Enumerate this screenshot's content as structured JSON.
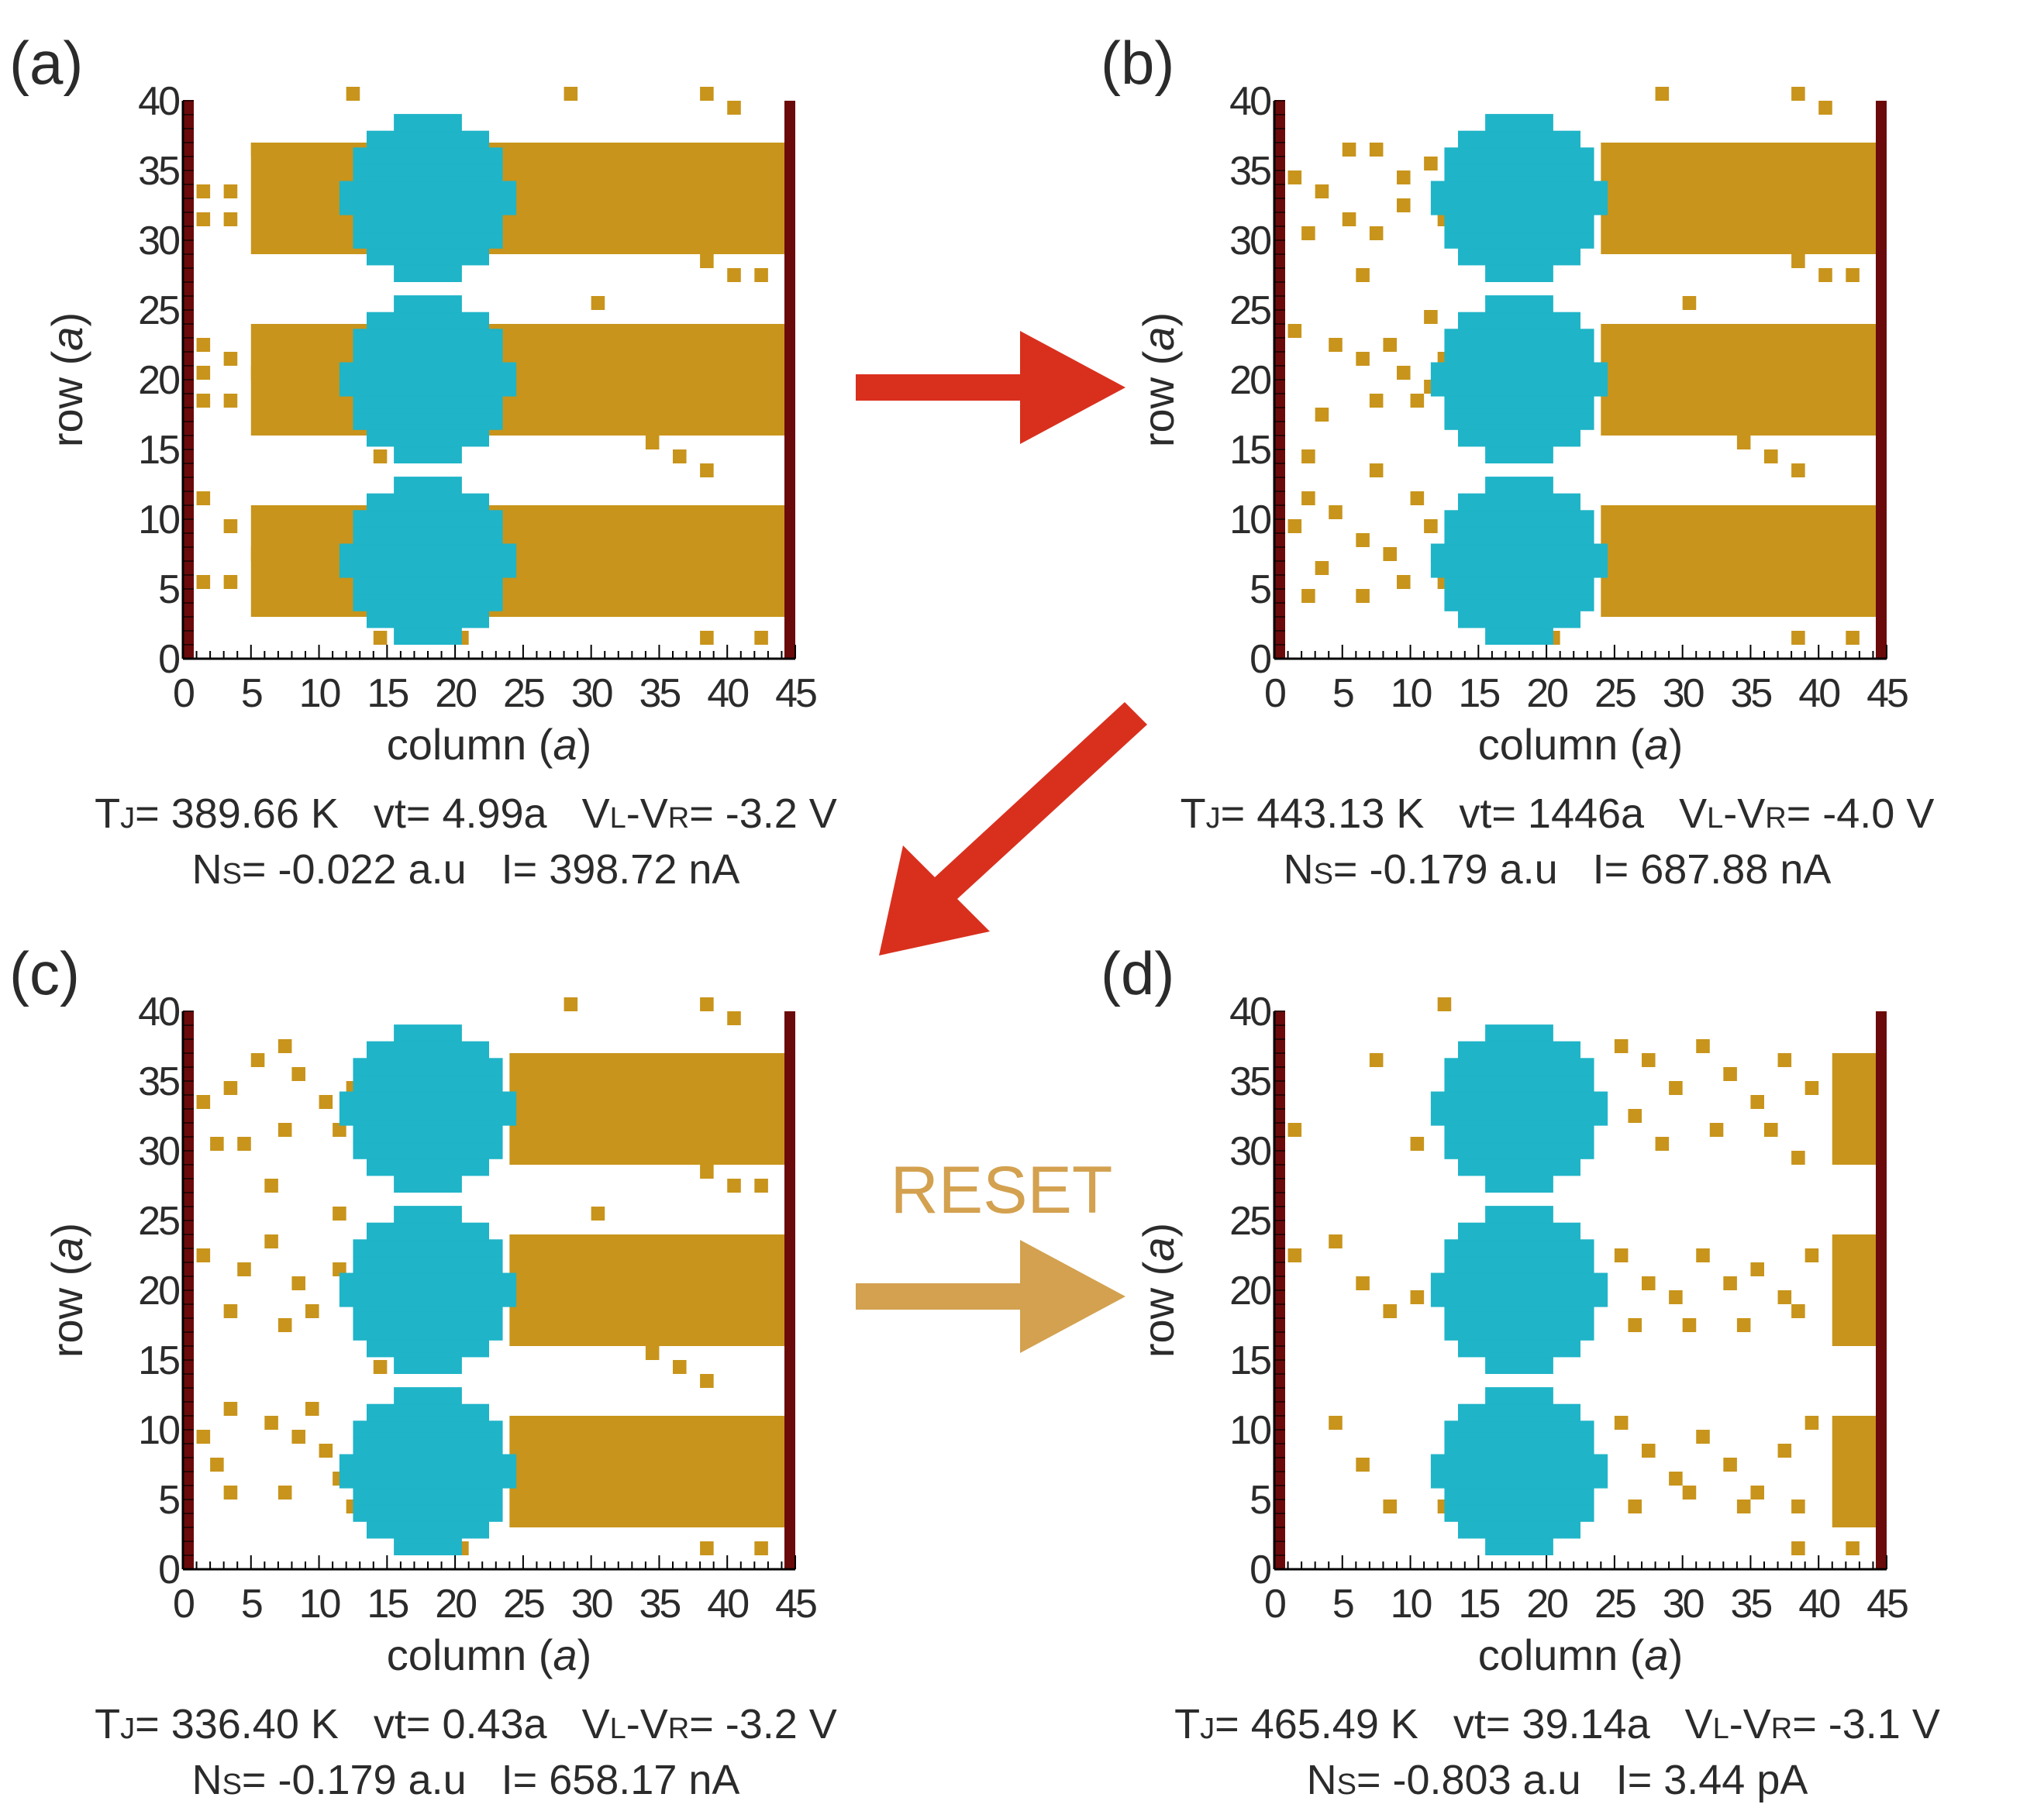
{
  "colors": {
    "sputtered_background": "#ffffff",
    "ion_occupied": "#c8941b",
    "particle": "#1fb4c8",
    "electrode": "#6b0a0a",
    "forward_arrow": "#d9301e",
    "reset_arrow": "#d3a14f",
    "text": "#2b2b2b"
  },
  "arrows": {
    "reset_label": "RESET"
  },
  "axis_text": {
    "x_label": "column (",
    "y_label": "row (",
    "unit": "a",
    "close_paren": ")",
    "x_ticks": [
      "0",
      "5",
      "10",
      "15",
      "20",
      "25",
      "30",
      "35",
      "40",
      "45"
    ],
    "y_ticks": [
      "0",
      "5",
      "10",
      "15",
      "20",
      "25",
      "30",
      "35",
      "40"
    ]
  },
  "chart_data": [
    {
      "type": "heatmap",
      "panel": "(a)",
      "xlabel": "column (a)",
      "ylabel": "row (a)",
      "xlim": [
        0,
        45
      ],
      "ylim": [
        0,
        40
      ],
      "fill_start_column": 5,
      "stripe_rows": [
        [
          3,
          11
        ],
        [
          16,
          24
        ],
        [
          29,
          37
        ]
      ],
      "particle_centers": [
        [
          18,
          7
        ],
        [
          18,
          20
        ],
        [
          18,
          33
        ]
      ],
      "scattered_sites": [
        [
          1,
          33
        ],
        [
          3,
          33
        ],
        [
          3,
          31
        ],
        [
          1,
          31
        ],
        [
          5,
          36
        ],
        [
          7,
          34
        ],
        [
          1,
          22
        ],
        [
          1,
          20
        ],
        [
          3,
          21
        ],
        [
          1,
          18
        ],
        [
          3,
          18
        ],
        [
          5,
          20
        ],
        [
          7,
          9
        ],
        [
          5,
          7
        ],
        [
          1,
          5
        ],
        [
          3,
          5
        ],
        [
          3,
          9
        ],
        [
          1,
          11
        ],
        [
          12,
          40
        ],
        [
          28,
          40
        ],
        [
          38,
          40
        ],
        [
          40,
          39
        ],
        [
          38,
          28
        ],
        [
          40,
          27
        ],
        [
          42,
          27
        ],
        [
          30,
          25
        ],
        [
          14,
          14
        ],
        [
          34,
          15
        ],
        [
          36,
          14
        ],
        [
          38,
          13
        ],
        [
          30,
          3
        ],
        [
          38,
          1
        ],
        [
          42,
          1
        ],
        [
          20,
          1
        ],
        [
          14,
          1
        ]
      ],
      "info": {
        "tj": "T",
        "tj_sub": "J",
        "tj_val": "= 389.66 K",
        "vt": "vt= 4.99a",
        "vl": "V",
        "vl_sub": "L",
        "vdash": "-V",
        "vr_sub": "R",
        "v_val": "= -3.2 V",
        "ns": "N",
        "ns_sub": "S",
        "ns_val": "= -0.022 a.u",
        "i": "I= 398.72 nA"
      }
    },
    {
      "type": "heatmap",
      "panel": "(b)",
      "xlabel": "column (a)",
      "ylabel": "row (a)",
      "xlim": [
        0,
        45
      ],
      "ylim": [
        0,
        40
      ],
      "fill_start_column": 24,
      "stripe_rows": [
        [
          3,
          11
        ],
        [
          16,
          24
        ],
        [
          29,
          37
        ]
      ],
      "particle_centers": [
        [
          18,
          7
        ],
        [
          18,
          20
        ],
        [
          18,
          33
        ]
      ],
      "scattered_sites": [
        [
          1,
          34
        ],
        [
          3,
          33
        ],
        [
          5,
          36
        ],
        [
          7,
          36
        ],
        [
          9,
          34
        ],
        [
          9,
          32
        ],
        [
          11,
          35
        ],
        [
          12,
          31
        ],
        [
          7,
          30
        ],
        [
          5,
          31
        ],
        [
          2,
          30
        ],
        [
          1,
          23
        ],
        [
          4,
          22
        ],
        [
          6,
          21
        ],
        [
          8,
          22
        ],
        [
          9,
          20
        ],
        [
          10,
          18
        ],
        [
          7,
          18
        ],
        [
          3,
          17
        ],
        [
          11,
          19
        ],
        [
          12,
          21
        ],
        [
          1,
          9
        ],
        [
          4,
          10
        ],
        [
          6,
          8
        ],
        [
          8,
          7
        ],
        [
          9,
          5
        ],
        [
          6,
          4
        ],
        [
          2,
          4
        ],
        [
          11,
          9
        ],
        [
          10,
          11
        ],
        [
          3,
          6
        ],
        [
          12,
          5
        ],
        [
          2,
          11
        ],
        [
          28,
          40
        ],
        [
          38,
          40
        ],
        [
          40,
          39
        ],
        [
          38,
          28
        ],
        [
          40,
          27
        ],
        [
          42,
          27
        ],
        [
          30,
          25
        ],
        [
          34,
          15
        ],
        [
          36,
          14
        ],
        [
          38,
          13
        ],
        [
          30,
          3
        ],
        [
          38,
          1
        ],
        [
          42,
          1
        ],
        [
          20,
          1
        ],
        [
          16,
          1
        ],
        [
          6,
          27
        ],
        [
          11,
          24
        ],
        [
          2,
          14
        ],
        [
          7,
          13
        ]
      ],
      "info": {
        "tj": "T",
        "tj_sub": "J",
        "tj_val": "= 443.13 K",
        "vt": "vt= 1446a",
        "vl": "V",
        "vl_sub": "L",
        "vdash": "-V",
        "vr_sub": "R",
        "v_val": "= -4.0 V",
        "ns": "N",
        "ns_sub": "S",
        "ns_val": "= -0.179 a.u",
        "i": "I= 687.88 nA"
      }
    },
    {
      "type": "heatmap",
      "panel": "(c)",
      "xlabel": "column (a)",
      "ylabel": "row (a)",
      "xlim": [
        0,
        45
      ],
      "ylim": [
        0,
        40
      ],
      "fill_start_column": 24,
      "stripe_rows": [
        [
          3,
          11
        ],
        [
          16,
          24
        ],
        [
          29,
          37
        ]
      ],
      "particle_centers": [
        [
          18,
          7
        ],
        [
          18,
          20
        ],
        [
          18,
          33
        ]
      ],
      "scattered_sites": [
        [
          1,
          33
        ],
        [
          3,
          34
        ],
        [
          5,
          36
        ],
        [
          7,
          37
        ],
        [
          8,
          35
        ],
        [
          10,
          33
        ],
        [
          12,
          34
        ],
        [
          11,
          31
        ],
        [
          7,
          31
        ],
        [
          4,
          30
        ],
        [
          2,
          30
        ],
        [
          1,
          22
        ],
        [
          4,
          21
        ],
        [
          6,
          23
        ],
        [
          8,
          20
        ],
        [
          9,
          18
        ],
        [
          11,
          21
        ],
        [
          12,
          19
        ],
        [
          7,
          17
        ],
        [
          3,
          18
        ],
        [
          1,
          9
        ],
        [
          3,
          11
        ],
        [
          6,
          10
        ],
        [
          8,
          9
        ],
        [
          10,
          8
        ],
        [
          11,
          6
        ],
        [
          7,
          5
        ],
        [
          3,
          5
        ],
        [
          2,
          7
        ],
        [
          12,
          4
        ],
        [
          9,
          11
        ],
        [
          28,
          40
        ],
        [
          38,
          40
        ],
        [
          40,
          39
        ],
        [
          38,
          28
        ],
        [
          40,
          27
        ],
        [
          42,
          27
        ],
        [
          30,
          25
        ],
        [
          14,
          14
        ],
        [
          34,
          15
        ],
        [
          36,
          14
        ],
        [
          38,
          13
        ],
        [
          30,
          3
        ],
        [
          38,
          1
        ],
        [
          42,
          1
        ],
        [
          20,
          1
        ],
        [
          16,
          1
        ],
        [
          6,
          27
        ],
        [
          11,
          25
        ]
      ],
      "info": {
        "tj": "T",
        "tj_sub": "J",
        "tj_val": "= 336.40 K",
        "vt": "vt= 0.43a",
        "vl": "V",
        "vl_sub": "L",
        "vdash": "-V",
        "vr_sub": "R",
        "v_val": "= -3.2 V",
        "ns": "N",
        "ns_sub": "S",
        "ns_val": "= -0.179 a.u",
        "i": "I= 658.17 nA"
      }
    },
    {
      "type": "heatmap",
      "panel": "(d)",
      "xlabel": "column (a)",
      "ylabel": "row (a)",
      "xlim": [
        0,
        45
      ],
      "ylim": [
        0,
        40
      ],
      "fill_start_column": 41,
      "stripe_rows": [
        [
          3,
          11
        ],
        [
          16,
          24
        ],
        [
          29,
          37
        ]
      ],
      "particle_centers": [
        [
          18,
          7
        ],
        [
          18,
          20
        ],
        [
          18,
          33
        ]
      ],
      "scattered_sites": [
        [
          25,
          37
        ],
        [
          27,
          36
        ],
        [
          29,
          34
        ],
        [
          31,
          37
        ],
        [
          33,
          35
        ],
        [
          35,
          33
        ],
        [
          37,
          36
        ],
        [
          39,
          34
        ],
        [
          26,
          32
        ],
        [
          28,
          30
        ],
        [
          32,
          31
        ],
        [
          36,
          31
        ],
        [
          38,
          29
        ],
        [
          25,
          22
        ],
        [
          27,
          20
        ],
        [
          29,
          19
        ],
        [
          31,
          22
        ],
        [
          33,
          20
        ],
        [
          35,
          21
        ],
        [
          37,
          19
        ],
        [
          39,
          22
        ],
        [
          26,
          17
        ],
        [
          30,
          17
        ],
        [
          34,
          17
        ],
        [
          38,
          18
        ],
        [
          25,
          10
        ],
        [
          27,
          8
        ],
        [
          29,
          6
        ],
        [
          31,
          9
        ],
        [
          33,
          7
        ],
        [
          35,
          5
        ],
        [
          37,
          8
        ],
        [
          39,
          10
        ],
        [
          26,
          4
        ],
        [
          30,
          5
        ],
        [
          34,
          4
        ],
        [
          38,
          4
        ],
        [
          12,
          40
        ],
        [
          13,
          32
        ],
        [
          10,
          30
        ],
        [
          1,
          31
        ],
        [
          7,
          36
        ],
        [
          4,
          23
        ],
        [
          6,
          20
        ],
        [
          8,
          18
        ],
        [
          10,
          19
        ],
        [
          1,
          22
        ],
        [
          4,
          10
        ],
        [
          6,
          7
        ],
        [
          8,
          4
        ],
        [
          12,
          4
        ],
        [
          16,
          1
        ],
        [
          38,
          1
        ],
        [
          42,
          1
        ]
      ],
      "info": {
        "tj": "T",
        "tj_sub": "J",
        "tj_val": "= 465.49 K",
        "vt": "vt= 39.14a",
        "vl": "V",
        "vl_sub": "L",
        "vdash": "-V",
        "vr_sub": "R",
        "v_val": "= -3.1 V",
        "ns": "N",
        "ns_sub": "S",
        "ns_val": "= -0.803 a.u",
        "i": "I= 3.44 pA"
      }
    }
  ]
}
